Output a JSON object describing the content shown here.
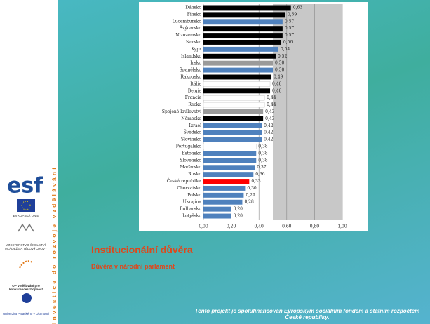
{
  "sidebar": {
    "vertical_text": "Investice do rozvoje vzdělávání",
    "eu": "EVROPSKÁ UNIE",
    "ministry": "MINISTERSTVO ŠKOLSTVÍ, MLÁDEŽE A TĚLOVÝCHOVY",
    "op": "OP Vzdělávání pro konkurenceschopnost",
    "university": "Univerzita Palackého v Olomouci",
    "esf": "esf"
  },
  "slide": {
    "title": "Institucionální důvěra",
    "subtitle": "Důvěra v národní parlament",
    "footer": "Tento projekt je spolufinancován Evropským sociálním fondem a státním rozpočtem České republiky."
  },
  "chart_data": {
    "type": "bar",
    "orientation": "horizontal",
    "categories": [
      "Dánsko",
      "Finsko",
      "Lucembursko",
      "Švýcarsko",
      "Nizozemsko",
      "Norsko",
      "Kypr",
      "Islandsko",
      "Irsko",
      "Španělsko",
      "Rakousko",
      "Itálie",
      "Belgie",
      "Francie",
      "Řecko",
      "Spojené království",
      "Německo",
      "Izrael",
      "Švédsko",
      "Slovinsko",
      "Portugalsko",
      "Estonsko",
      "Slovensko",
      "Maďarsko",
      "Rusko",
      "Česká republika",
      "Chorvatsko",
      "Polsko",
      "Ukrajina",
      "Bulharsko",
      "Lotyšsko"
    ],
    "values": [
      0.63,
      0.59,
      0.57,
      0.57,
      0.57,
      0.56,
      0.54,
      0.52,
      0.5,
      0.5,
      0.49,
      0.48,
      0.48,
      0.44,
      0.44,
      0.43,
      0.43,
      0.42,
      0.42,
      0.42,
      0.38,
      0.38,
      0.38,
      0.37,
      0.36,
      0.33,
      0.3,
      0.29,
      0.28,
      0.2,
      0.2
    ],
    "value_labels": [
      "0,63",
      "0,59",
      "0,57",
      "0,57",
      "0,57",
      "0,56",
      "0,54",
      "0,52",
      "0,50",
      "0,50",
      "0,49",
      "0,48",
      "0,48",
      "0,44",
      "0,44",
      "0,43",
      "0,43",
      "0,42",
      "0,42",
      "0,42",
      "0,38",
      "0,38",
      "0,38",
      "0,37",
      "0,36",
      "0,33",
      "0,30",
      "0,29",
      "0,28",
      "0,20",
      "0,20"
    ],
    "colors": [
      "#000000",
      "#000000",
      "#4f81bd",
      "#000000",
      "#000000",
      "#000000",
      "#4f81bd",
      "#000000",
      "#9a9a9a",
      "#4f81bd",
      "#000000",
      "#ffffff",
      "#000000",
      "#ffffff",
      "#ffffff",
      "#9a9a9a",
      "#000000",
      "#4f81bd",
      "#4f81bd",
      "#4f81bd",
      "#ffffff",
      "#4f81bd",
      "#4f81bd",
      "#4f81bd",
      "#4f81bd",
      "#ff0000",
      "#4f81bd",
      "#4f81bd",
      "#4f81bd",
      "#4f81bd",
      "#4f81bd"
    ],
    "xlim": [
      0,
      1
    ],
    "xticks": [
      {
        "value": 0,
        "label": "0,00"
      },
      {
        "value": 0.2,
        "label": "0,20"
      },
      {
        "value": 0.4,
        "label": "0,40"
      },
      {
        "value": 0.6,
        "label": "0,60"
      },
      {
        "value": 0.8,
        "label": "0,80"
      },
      {
        "value": 1,
        "label": "1,00"
      }
    ]
  }
}
